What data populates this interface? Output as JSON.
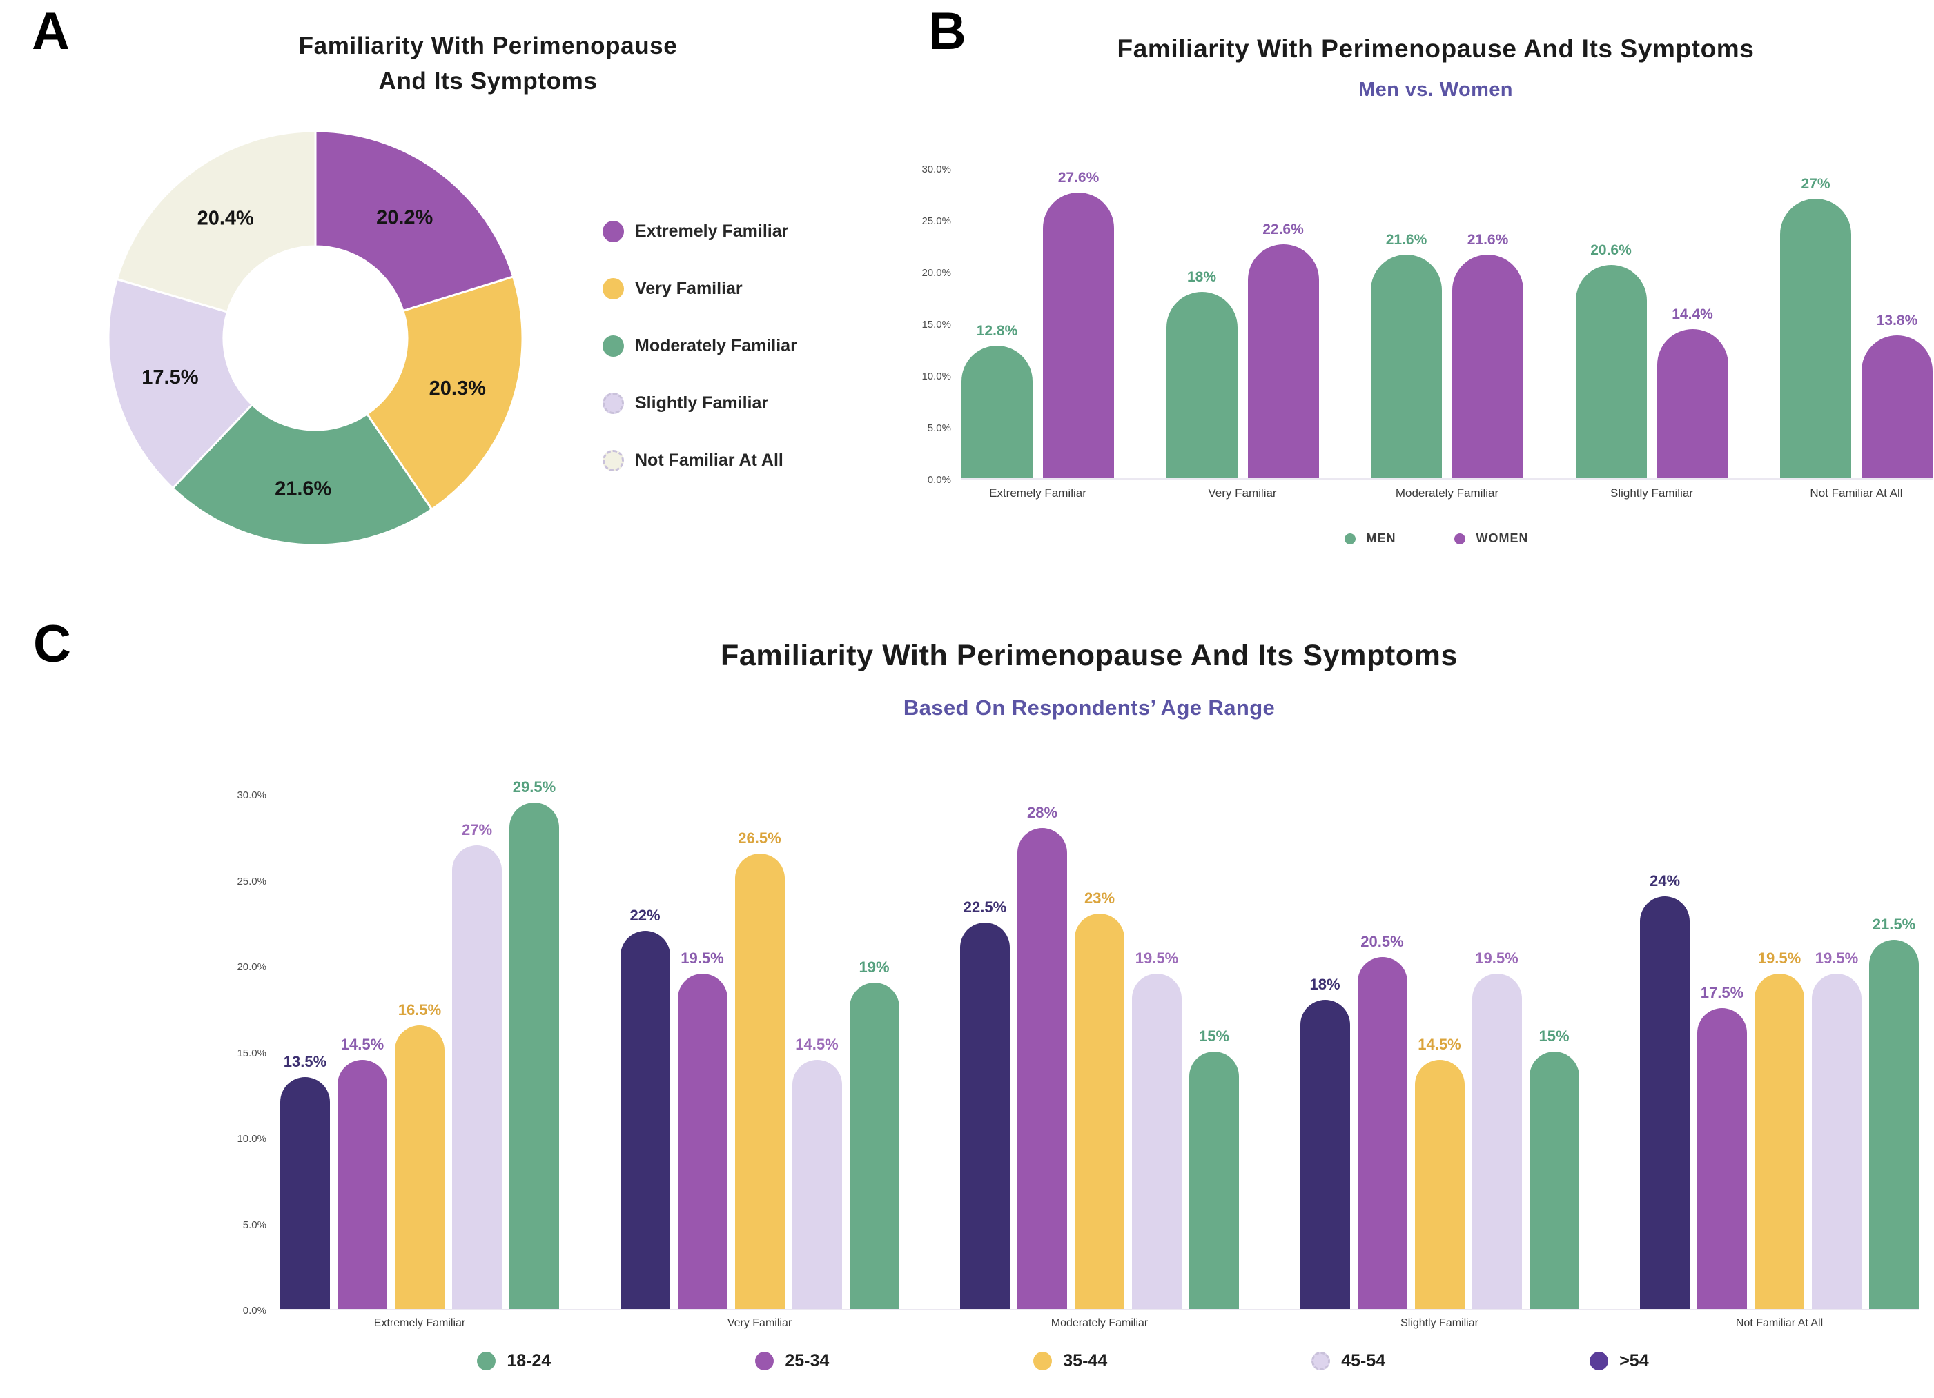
{
  "chart_data": [
    {
      "panel": "A",
      "type": "pie",
      "title_lines": [
        "Familiarity With Perimenopause",
        "And Its Symptoms"
      ],
      "slices": [
        {
          "label": "Extremely Familiar",
          "value": 20.2,
          "display": "20.2%",
          "color": "#9a57ae"
        },
        {
          "label": "Very Familiar",
          "value": 20.3,
          "display": "20.3%",
          "color": "#f4c65c"
        },
        {
          "label": "Moderately Familiar",
          "value": 21.6,
          "display": "21.6%",
          "color": "#69ab89"
        },
        {
          "label": "Slightly Familiar",
          "value": 17.5,
          "display": "17.5%",
          "color": "#ddd4ed"
        },
        {
          "label": "Not Familiar At All",
          "value": 20.4,
          "display": "20.4%",
          "color": "#f2f1e3"
        }
      ],
      "legend_position": "right"
    },
    {
      "panel": "B",
      "type": "bar",
      "title": "Familiarity With Perimenopause And Its Symptoms",
      "subtitle": "Men vs. Women",
      "categories": [
        "Extremely Familiar",
        "Very Familiar",
        "Moderately Familiar",
        "Slightly Familiar",
        "Not Familiar At All"
      ],
      "series": [
        {
          "name": "MEN",
          "color": "#69ab89",
          "label_color": "#55a07e",
          "values": [
            12.8,
            18,
            21.6,
            20.6,
            27
          ],
          "labels": [
            "12.8%",
            "18%",
            "21.6%",
            "20.6%",
            "27%"
          ]
        },
        {
          "name": "WOMEN",
          "color": "#9a57ae",
          "label_color": "#8a5cae",
          "values": [
            27.6,
            22.6,
            21.6,
            14.4,
            13.8
          ],
          "labels": [
            "27.6%",
            "22.6%",
            "21.6%",
            "14.4%",
            "13.8%"
          ]
        }
      ],
      "legend": [
        {
          "name": "MEN",
          "color": "#69ab89"
        },
        {
          "name": "WOMEN",
          "color": "#9a57ae"
        }
      ],
      "ylim": [
        0,
        30
      ],
      "yticks": [
        "0.0%",
        "5.0%",
        "10.0%",
        "15.0%",
        "20.0%",
        "25.0%",
        "30.0%"
      ],
      "grid": false,
      "legend_position": "bottom"
    },
    {
      "panel": "C",
      "type": "bar",
      "title": "Familiarity With Perimenopause And Its Symptoms",
      "subtitle": "Based On Respondents’ Age Range",
      "categories": [
        "Extremely Familiar",
        "Very Familiar",
        "Moderately Familiar",
        "Slightly Familiar",
        "Not Familiar At All"
      ],
      "series": [
        {
          "name": ">54",
          "color": "#3d3071",
          "label_color": "#3d3071",
          "values": [
            13.5,
            22,
            22.5,
            18,
            24
          ],
          "labels": [
            "13.5%",
            "22%",
            "22.5%",
            "18%",
            "24%"
          ]
        },
        {
          "name": "25-34",
          "color": "#9a57ae",
          "label_color": "#8a5cae",
          "values": [
            14.5,
            19.5,
            28,
            20.5,
            17.5
          ],
          "labels": [
            "14.5%",
            "19.5%",
            "28%",
            "20.5%",
            "17.5%"
          ]
        },
        {
          "name": "35-44",
          "color": "#f4c65c",
          "label_color": "#dba43c",
          "values": [
            16.5,
            26.5,
            23,
            14.5,
            19.5
          ],
          "labels": [
            "16.5%",
            "26.5%",
            "23%",
            "14.5%",
            "19.5%"
          ]
        },
        {
          "name": "45-54",
          "color": "#ddd4ed",
          "label_color": "#9b6ab8",
          "values": [
            27,
            14.5,
            19.5,
            19.5,
            19.5
          ],
          "labels": [
            "27%",
            "14.5%",
            "19.5%",
            "19.5%",
            "19.5%"
          ]
        },
        {
          "name": "18-24",
          "color": "#69ab89",
          "label_color": "#55a07e",
          "values": [
            29.5,
            19,
            15,
            15,
            21.5
          ],
          "labels": [
            "29.5%",
            "19%",
            "15%",
            "15%",
            "21.5%"
          ]
        }
      ],
      "legend": [
        {
          "name": "18-24",
          "color": "#69ab89"
        },
        {
          "name": "25-34",
          "color": "#9a57ae"
        },
        {
          "name": "35-44",
          "color": "#f4c65c"
        },
        {
          "name": "45-54",
          "color": "#ddd4ed"
        },
        {
          "name": ">54",
          "color": "#5a3d99"
        }
      ],
      "ylim": [
        0,
        30
      ],
      "yticks": [
        "0.0%",
        "5.0%",
        "10.0%",
        "15.0%",
        "20.0%",
        "25.0%",
        "30.0%"
      ],
      "grid": false,
      "legend_position": "bottom"
    }
  ]
}
